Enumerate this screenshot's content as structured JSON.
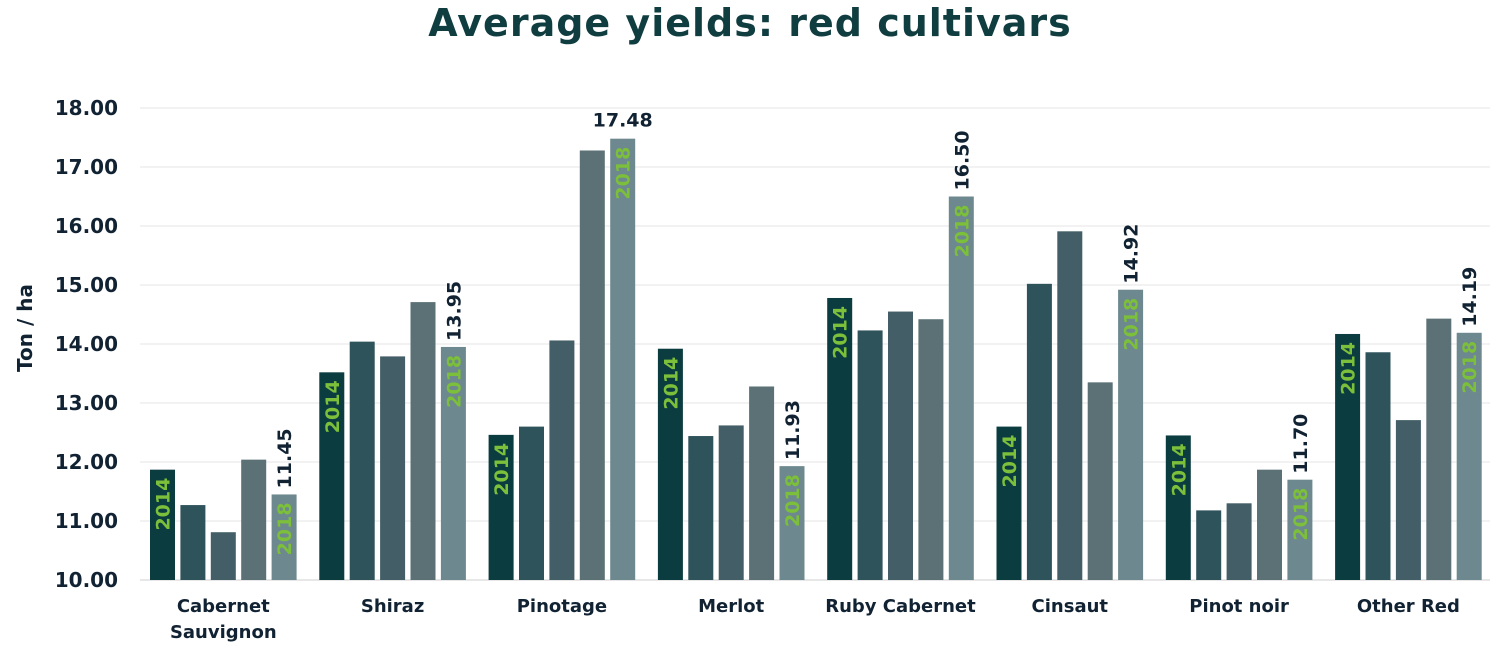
{
  "chart_data": {
    "type": "bar",
    "title": "Average yields: red cultivars",
    "xlabel": "",
    "ylabel": "Ton / ha",
    "ylim": [
      10,
      18
    ],
    "yticks": [
      "10.00",
      "11.00",
      "12.00",
      "13.00",
      "14.00",
      "15.00",
      "16.00",
      "17.00",
      "18.00"
    ],
    "grid": true,
    "categories": [
      "Cabernet Sauvignon",
      "Shiraz",
      "Pinotage",
      "Merlot",
      "Ruby Cabernet",
      "Cinsaut",
      "Pinot noir",
      "Other Red"
    ],
    "category_lines": [
      [
        "Cabernet",
        "Sauvignon"
      ],
      [
        "Shiraz"
      ],
      [
        "Pinotage"
      ],
      [
        "Merlot"
      ],
      [
        "Ruby Cabernet"
      ],
      [
        "Cinsaut"
      ],
      [
        "Pinot noir"
      ],
      [
        "Other Red"
      ]
    ],
    "series": [
      {
        "name": "2014",
        "color": "#0b3c40",
        "values": [
          11.87,
          13.52,
          12.46,
          13.92,
          14.78,
          12.6,
          12.45,
          14.17
        ]
      },
      {
        "values": [
          11.27,
          14.04,
          12.6,
          12.44,
          14.23,
          15.02,
          11.18,
          13.86
        ],
        "color": "#2e535b"
      },
      {
        "values": [
          10.81,
          13.79,
          14.06,
          12.62,
          14.55,
          15.91,
          11.3,
          12.71
        ],
        "color": "#435e66"
      },
      {
        "values": [
          12.04,
          14.71,
          17.28,
          13.28,
          14.42,
          13.35,
          11.87,
          14.43
        ],
        "color": "#5b7176"
      },
      {
        "name": "2018",
        "color": "#6d888e",
        "values": [
          11.45,
          13.95,
          17.48,
          11.93,
          16.5,
          14.92,
          11.7,
          14.19
        ]
      }
    ],
    "data_labels": [
      "11.45",
      "13.95",
      "17.48",
      "11.93",
      "16.50",
      "14.92",
      "11.70",
      "14.19"
    ],
    "year_label_colors": "#7cbf3a",
    "text_color": "#123333",
    "title_color": "#0f3d40"
  }
}
